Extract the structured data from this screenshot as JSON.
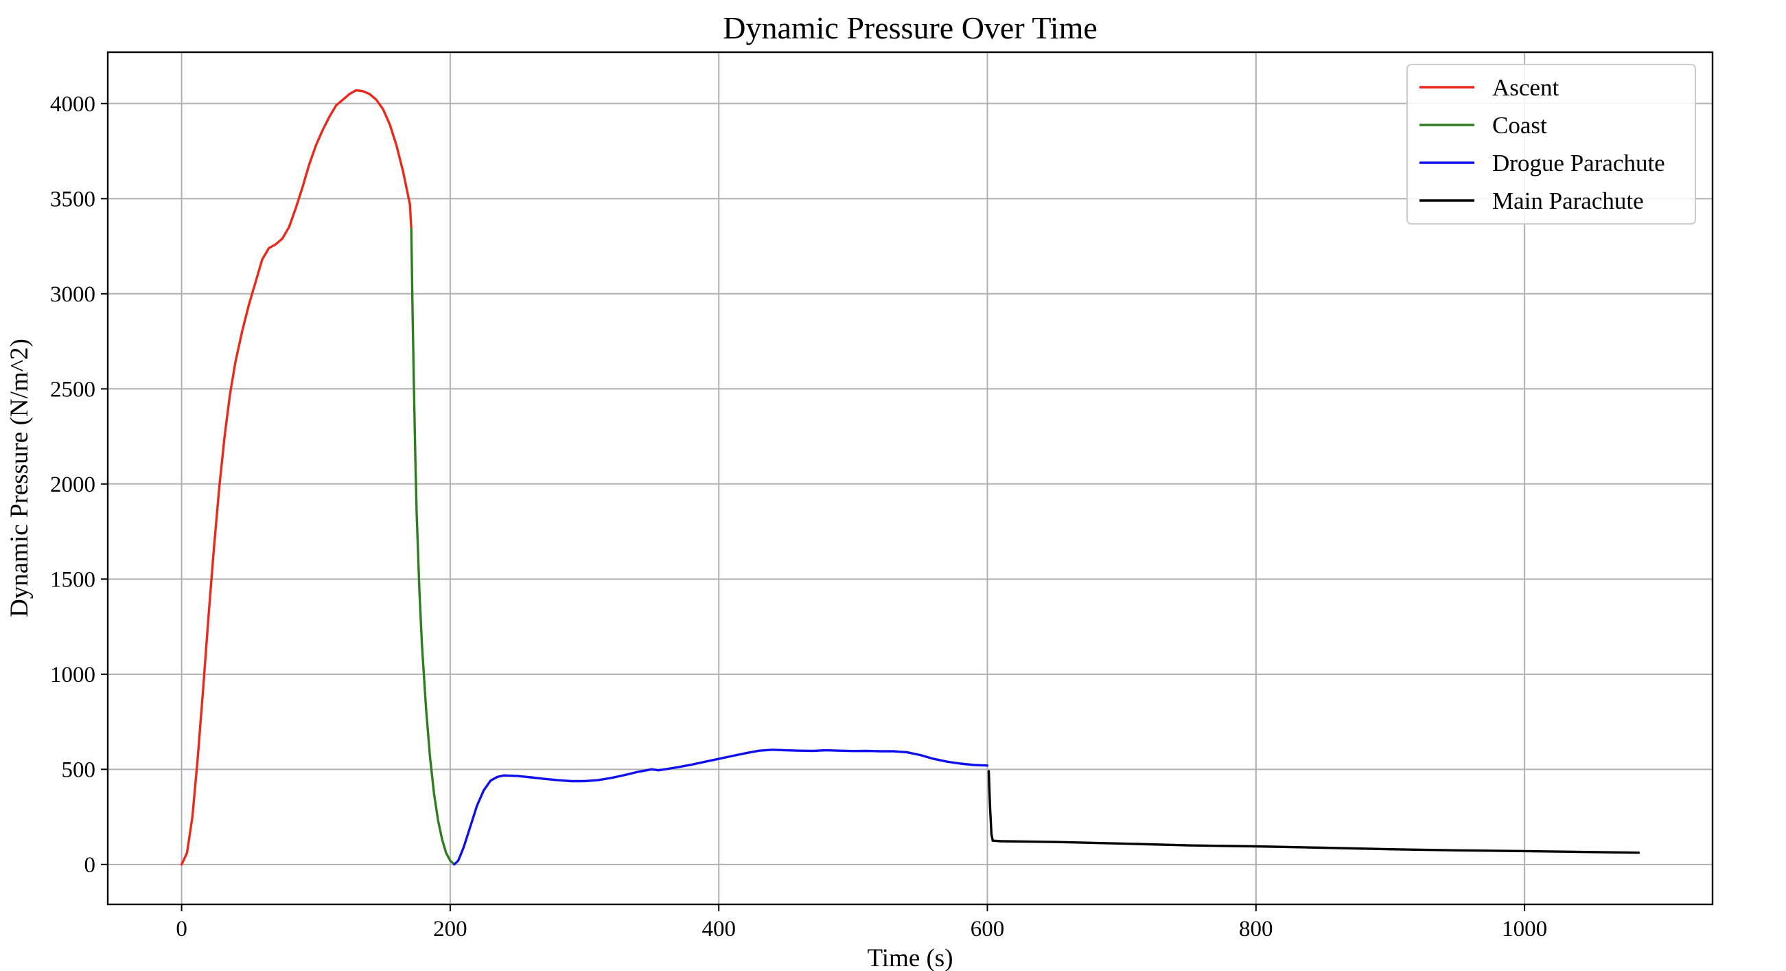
{
  "chart_data": {
    "type": "line",
    "title": "Dynamic Pressure Over Time",
    "xlabel": "Time (s)",
    "ylabel": "Dynamic Pressure (N/m^2)",
    "xlim": [
      -55,
      1140
    ],
    "ylim": [
      -210,
      4270
    ],
    "xticks": [
      0,
      200,
      400,
      600,
      800,
      1000
    ],
    "yticks": [
      0,
      500,
      1000,
      1500,
      2000,
      2500,
      3000,
      3500,
      4000
    ],
    "grid": true,
    "legend_position": "top-right",
    "series": [
      {
        "name": "Ascent",
        "color": "#e8291c",
        "points": [
          [
            0,
            0
          ],
          [
            4,
            60
          ],
          [
            8,
            250
          ],
          [
            12,
            560
          ],
          [
            16,
            920
          ],
          [
            20,
            1300
          ],
          [
            24,
            1660
          ],
          [
            28,
            1980
          ],
          [
            32,
            2250
          ],
          [
            36,
            2470
          ],
          [
            40,
            2640
          ],
          [
            45,
            2800
          ],
          [
            50,
            2940
          ],
          [
            55,
            3060
          ],
          [
            60,
            3180
          ],
          [
            65,
            3240
          ],
          [
            70,
            3260
          ],
          [
            75,
            3290
          ],
          [
            80,
            3350
          ],
          [
            85,
            3450
          ],
          [
            90,
            3560
          ],
          [
            95,
            3680
          ],
          [
            100,
            3780
          ],
          [
            105,
            3860
          ],
          [
            110,
            3930
          ],
          [
            115,
            3990
          ],
          [
            120,
            4020
          ],
          [
            125,
            4050
          ],
          [
            130,
            4070
          ],
          [
            135,
            4065
          ],
          [
            140,
            4050
          ],
          [
            145,
            4020
          ],
          [
            150,
            3970
          ],
          [
            155,
            3890
          ],
          [
            160,
            3780
          ],
          [
            165,
            3640
          ],
          [
            170,
            3470
          ],
          [
            171,
            3340
          ]
        ]
      },
      {
        "name": "Coast",
        "color": "#2e7d20",
        "points": [
          [
            171,
            3340
          ],
          [
            172,
            2900
          ],
          [
            173,
            2500
          ],
          [
            174,
            2150
          ],
          [
            175,
            1850
          ],
          [
            177,
            1450
          ],
          [
            179,
            1150
          ],
          [
            182,
            820
          ],
          [
            185,
            560
          ],
          [
            188,
            370
          ],
          [
            191,
            230
          ],
          [
            194,
            130
          ],
          [
            197,
            60
          ],
          [
            200,
            20
          ],
          [
            203,
            0
          ]
        ]
      },
      {
        "name": "Drogue Parachute",
        "color": "#1010ee",
        "points": [
          [
            203,
            0
          ],
          [
            206,
            20
          ],
          [
            210,
            90
          ],
          [
            215,
            200
          ],
          [
            220,
            310
          ],
          [
            225,
            390
          ],
          [
            230,
            440
          ],
          [
            235,
            460
          ],
          [
            240,
            468
          ],
          [
            250,
            465
          ],
          [
            260,
            458
          ],
          [
            270,
            450
          ],
          [
            280,
            443
          ],
          [
            290,
            438
          ],
          [
            300,
            438
          ],
          [
            310,
            443
          ],
          [
            320,
            455
          ],
          [
            330,
            470
          ],
          [
            340,
            487
          ],
          [
            350,
            500
          ],
          [
            355,
            495
          ],
          [
            360,
            500
          ],
          [
            370,
            512
          ],
          [
            380,
            525
          ],
          [
            390,
            540
          ],
          [
            400,
            555
          ],
          [
            410,
            570
          ],
          [
            420,
            585
          ],
          [
            430,
            598
          ],
          [
            440,
            603
          ],
          [
            450,
            600
          ],
          [
            460,
            598
          ],
          [
            470,
            597
          ],
          [
            480,
            600
          ],
          [
            490,
            598
          ],
          [
            500,
            596
          ],
          [
            510,
            597
          ],
          [
            520,
            595
          ],
          [
            530,
            595
          ],
          [
            540,
            590
          ],
          [
            550,
            575
          ],
          [
            560,
            555
          ],
          [
            570,
            540
          ],
          [
            580,
            530
          ],
          [
            590,
            523
          ],
          [
            600,
            520
          ]
        ]
      },
      {
        "name": "Main Parachute",
        "color": "#000000",
        "points": [
          [
            601,
            490
          ],
          [
            602,
            300
          ],
          [
            603,
            160
          ],
          [
            604,
            125
          ],
          [
            610,
            122
          ],
          [
            650,
            118
          ],
          [
            700,
            110
          ],
          [
            750,
            100
          ],
          [
            800,
            95
          ],
          [
            850,
            88
          ],
          [
            900,
            80
          ],
          [
            950,
            74
          ],
          [
            1000,
            70
          ],
          [
            1050,
            65
          ],
          [
            1085,
            62
          ]
        ]
      }
    ]
  }
}
